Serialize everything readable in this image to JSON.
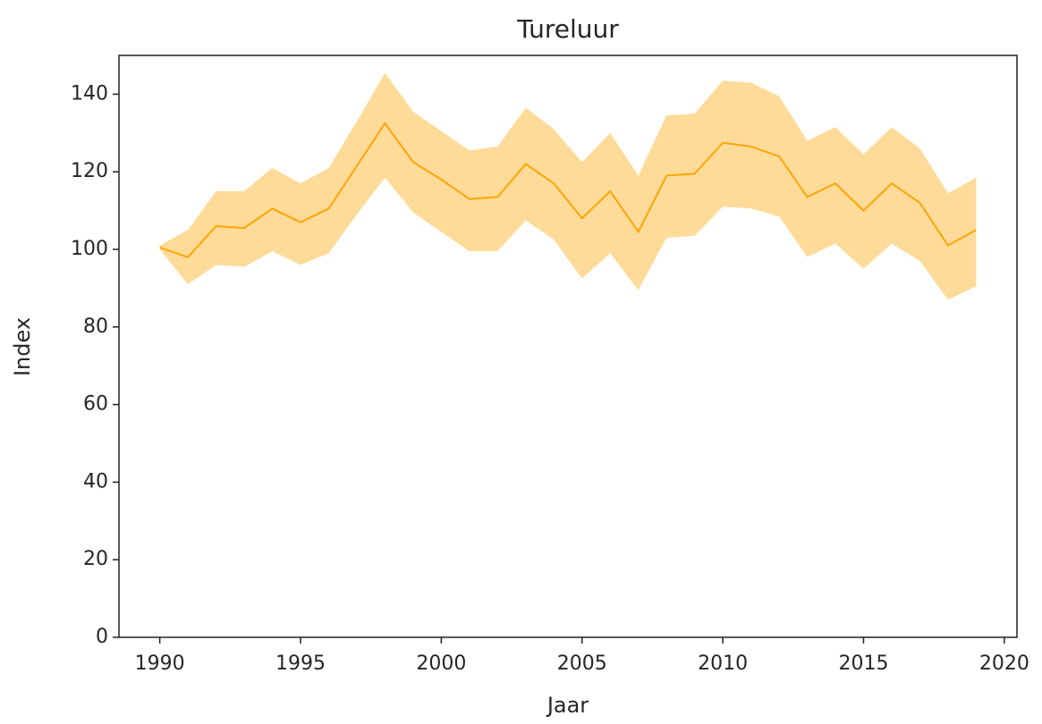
{
  "chart_data": {
    "type": "line",
    "title": "Tureluur",
    "x_label": "Jaar",
    "y_label": "Index",
    "x": [
      1990,
      1991,
      1992,
      1993,
      1994,
      1995,
      1996,
      1997,
      1998,
      1999,
      2000,
      2001,
      2002,
      2003,
      2004,
      2005,
      2006,
      2007,
      2008,
      2009,
      2010,
      2011,
      2012,
      2013,
      2014,
      2015,
      2016,
      2017,
      2018,
      2019
    ],
    "values": [
      100.5,
      98,
      106,
      105.5,
      110.5,
      107,
      110.5,
      121.5,
      132.5,
      122.5,
      118,
      113,
      113.5,
      122,
      117,
      108,
      115,
      104.5,
      119,
      119.5,
      127.5,
      126.5,
      124,
      113.5,
      117,
      110,
      117,
      112,
      101,
      105
    ],
    "lower": [
      100,
      91,
      96,
      95.5,
      99.5,
      96,
      99,
      109,
      118.5,
      109.5,
      104.5,
      99.5,
      99.5,
      107.5,
      102.5,
      92.5,
      99,
      89.5,
      103,
      103.5,
      111,
      110.5,
      108.5,
      98,
      101.5,
      95,
      101.5,
      97,
      87,
      90.5
    ],
    "upper": [
      101,
      105,
      115,
      115,
      121,
      117,
      121,
      133,
      145.5,
      135.5,
      130.5,
      125.5,
      126.5,
      136.5,
      131,
      122.5,
      130,
      119,
      134.5,
      135,
      143.5,
      143,
      139.5,
      128,
      131.5,
      124.5,
      131.5,
      126,
      114.5,
      118.5
    ],
    "color": "#ffa500",
    "band_opacity": 0.4,
    "xlim": [
      1988.55,
      2020.45
    ],
    "ylim": [
      0,
      150
    ],
    "xticks": [
      1990,
      1995,
      2000,
      2005,
      2010,
      2015,
      2020
    ],
    "yticks": [
      0,
      20,
      40,
      60,
      80,
      100,
      120,
      140
    ],
    "grid": false
  }
}
